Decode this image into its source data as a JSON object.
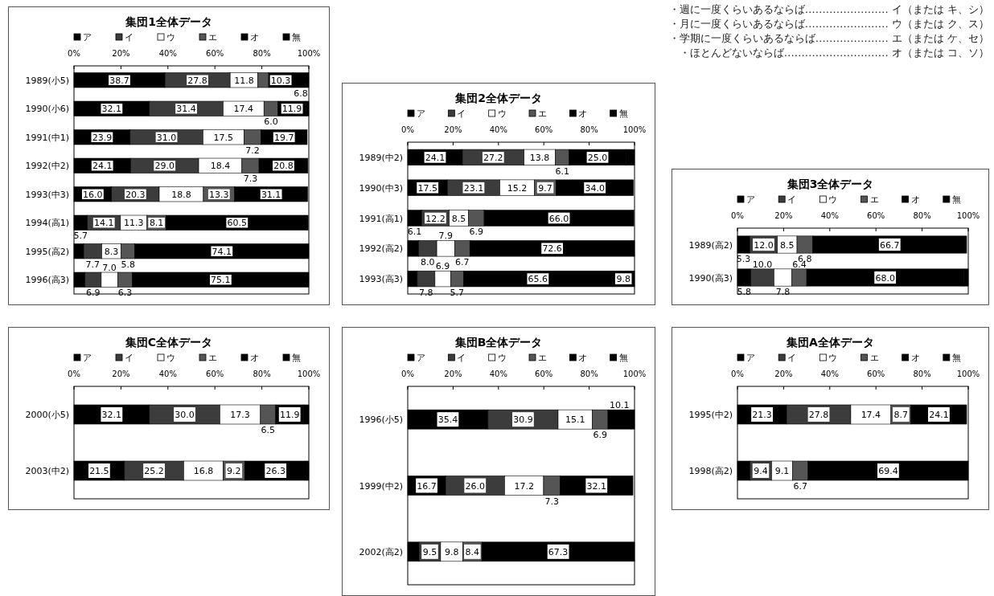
{
  "chart_data": [
    {
      "type": "other",
      "annotations": [
        "・週に一度くらいあるならば…………………… イ（または キ、シ）",
        "・月に一度くらいあるならば…………………… ウ（または ク、ス）",
        "・学期に一度くらいあるならば………………… エ（または ケ、セ）",
        "・ほとんどないならば………………………… オ（または コ、ソ）"
      ]
    },
    {
      "type": "bar",
      "orientation": "horizontal",
      "stacked": true,
      "title": "集団1全体データ",
      "legend": "top",
      "xlim": [
        0,
        100
      ],
      "xticks": [
        {
          "value": 0,
          "label": "0%"
        },
        {
          "value": 20,
          "label": "20%"
        },
        {
          "value": 40,
          "label": "40%"
        },
        {
          "value": 60,
          "label": "60%"
        },
        {
          "value": 80,
          "label": "80%"
        },
        {
          "value": 100,
          "label": "100%"
        }
      ],
      "categories": [
        "1989(小5)",
        "1990(小6)",
        "1991(中1)",
        "1992(中2)",
        "1993(中3)",
        "1994(高1)",
        "1995(高2)",
        "1996(高3)"
      ],
      "series": [
        {
          "name": "ア",
          "color": "#000000",
          "values": [
            38.7,
            32.1,
            23.9,
            24.1,
            16.0,
            5.7,
            4.1,
            4.7
          ],
          "value_labels": [
            "38.7",
            "32.1",
            "23.9",
            "24.1",
            "16.0",
            "5.7",
            null,
            null
          ]
        },
        {
          "name": "イ",
          "color": "#3c3c3c",
          "values": [
            27.8,
            31.4,
            31.0,
            29.0,
            20.3,
            14.1,
            7.7,
            6.9
          ],
          "value_labels": [
            "27.8",
            "31.4",
            "31.0",
            "29.0",
            "20.3",
            "14.1",
            "7.7",
            "6.9"
          ]
        },
        {
          "name": "ウ",
          "color": "#ffffff",
          "values": [
            11.8,
            17.4,
            17.5,
            18.4,
            18.8,
            11.3,
            8.3,
            7.0
          ],
          "value_labels": [
            "11.8",
            "17.4",
            "17.5",
            "18.4",
            "18.8",
            "11.3",
            "8.3",
            "7.0"
          ]
        },
        {
          "name": "エ",
          "color": "#555555",
          "values": [
            4.6,
            6.0,
            7.2,
            7.3,
            13.3,
            8.1,
            5.8,
            6.3
          ],
          "value_labels": [
            null,
            "6.0",
            "7.2",
            "7.3",
            "13.3",
            "8.1",
            "5.8",
            "6.3"
          ]
        },
        {
          "name": "オ",
          "color": "#000000",
          "values": [
            10.3,
            11.9,
            19.7,
            20.8,
            31.1,
            60.5,
            74.1,
            75.1
          ],
          "value_labels": [
            "10.3",
            "11.9",
            "19.7",
            "20.8",
            "31.1",
            "60.5",
            "74.1",
            "75.1"
          ]
        },
        {
          "name": "無",
          "color": "#000000",
          "values": [
            6.8,
            1.2,
            null,
            null,
            null,
            null,
            null,
            null
          ],
          "value_labels": [
            "6.8",
            null,
            null,
            null,
            null,
            null,
            null,
            null
          ]
        }
      ]
    },
    {
      "type": "bar",
      "orientation": "horizontal",
      "stacked": true,
      "title": "集団2全体データ",
      "legend": "top",
      "xlim": [
        0,
        100
      ],
      "xticks": [
        {
          "value": 0,
          "label": "0%"
        },
        {
          "value": 20,
          "label": "20%"
        },
        {
          "value": 40,
          "label": "40%"
        },
        {
          "value": 60,
          "label": "60%"
        },
        {
          "value": 80,
          "label": "80%"
        },
        {
          "value": 100,
          "label": "100%"
        }
      ],
      "categories": [
        "1989(中2)",
        "1990(中3)",
        "1991(高1)",
        "1992(高2)",
        "1993(高3)"
      ],
      "series": [
        {
          "name": "ア",
          "color": "#000000",
          "values": [
            24.1,
            17.5,
            6.1,
            4.8,
            4.2
          ],
          "value_labels": [
            "24.1",
            "17.5",
            "6.1",
            null,
            null
          ]
        },
        {
          "name": "イ",
          "color": "#3c3c3c",
          "values": [
            27.2,
            23.1,
            12.2,
            8.0,
            7.8
          ],
          "value_labels": [
            "27.2",
            "23.1",
            "12.2",
            "8.0",
            "7.8"
          ]
        },
        {
          "name": "ウ",
          "color": "#ffffff",
          "values": [
            13.8,
            15.2,
            8.5,
            7.9,
            6.9
          ],
          "value_labels": [
            "13.8",
            "15.2",
            "8.5",
            "7.9",
            "6.9"
          ]
        },
        {
          "name": "エ",
          "color": "#555555",
          "values": [
            6.1,
            9.7,
            6.9,
            6.7,
            5.7
          ],
          "value_labels": [
            "6.1",
            "9.7",
            "6.9",
            "6.7",
            "5.7"
          ]
        },
        {
          "name": "オ",
          "color": "#000000",
          "values": [
            25.0,
            34.0,
            66.0,
            72.6,
            65.6
          ],
          "value_labels": [
            "25.0",
            "34.0",
            "66.0",
            "72.6",
            "65.6"
          ]
        },
        {
          "name": "無",
          "color": "#000000",
          "values": [
            3.8,
            null,
            null,
            null,
            9.8
          ],
          "value_labels": [
            null,
            null,
            null,
            null,
            "9.8"
          ]
        }
      ]
    },
    {
      "type": "bar",
      "orientation": "horizontal",
      "stacked": true,
      "title": "集団3全体データ",
      "legend": "top",
      "xlim": [
        0,
        100
      ],
      "xticks": [
        {
          "value": 0,
          "label": "0%"
        },
        {
          "value": 20,
          "label": "20%"
        },
        {
          "value": 40,
          "label": "40%"
        },
        {
          "value": 60,
          "label": "60%"
        },
        {
          "value": 80,
          "label": "80%"
        },
        {
          "value": 100,
          "label": "100%"
        }
      ],
      "categories": [
        "1989(高2)",
        "1990(高3)"
      ],
      "series": [
        {
          "name": "ア",
          "color": "#000000",
          "values": [
            5.3,
            5.8
          ],
          "value_labels": [
            "5.3",
            "5.8"
          ]
        },
        {
          "name": "イ",
          "color": "#3c3c3c",
          "values": [
            12.0,
            10.0
          ],
          "value_labels": [
            "12.0",
            "10.0"
          ]
        },
        {
          "name": "ウ",
          "color": "#ffffff",
          "values": [
            8.5,
            7.8
          ],
          "value_labels": [
            "8.5",
            "7.8"
          ]
        },
        {
          "name": "エ",
          "color": "#555555",
          "values": [
            6.8,
            6.4
          ],
          "value_labels": [
            "6.8",
            "6.4"
          ]
        },
        {
          "name": "オ",
          "color": "#000000",
          "values": [
            66.7,
            68.0
          ],
          "value_labels": [
            "66.7",
            "68.0"
          ]
        },
        {
          "name": "無",
          "color": "#000000",
          "values": [
            null,
            2.0
          ],
          "value_labels": [
            null,
            null
          ]
        }
      ]
    },
    {
      "type": "bar",
      "orientation": "horizontal",
      "stacked": true,
      "title": "集団C全体データ",
      "legend": "top",
      "xlim": [
        0,
        100
      ],
      "xticks": [
        {
          "value": 0,
          "label": "0%"
        },
        {
          "value": 20,
          "label": "20%"
        },
        {
          "value": 40,
          "label": "40%"
        },
        {
          "value": 60,
          "label": "60%"
        },
        {
          "value": 80,
          "label": "80%"
        },
        {
          "value": 100,
          "label": "100%"
        }
      ],
      "categories": [
        "2000(小5)",
        "2003(中2)"
      ],
      "series": [
        {
          "name": "ア",
          "color": "#000000",
          "values": [
            32.1,
            21.5
          ],
          "value_labels": [
            "32.1",
            "21.5"
          ]
        },
        {
          "name": "イ",
          "color": "#3c3c3c",
          "values": [
            30.0,
            25.2
          ],
          "value_labels": [
            "30.0",
            "25.2"
          ]
        },
        {
          "name": "ウ",
          "color": "#ffffff",
          "values": [
            17.3,
            16.8
          ],
          "value_labels": [
            "17.3",
            "16.8"
          ]
        },
        {
          "name": "エ",
          "color": "#555555",
          "values": [
            6.5,
            9.2
          ],
          "value_labels": [
            "6.5",
            "9.2"
          ]
        },
        {
          "name": "オ",
          "color": "#000000",
          "values": [
            11.9,
            26.3
          ],
          "value_labels": [
            "11.9",
            "26.3"
          ]
        },
        {
          "name": "無",
          "color": "#000000",
          "values": [
            2.2,
            1.0
          ],
          "value_labels": [
            null,
            null
          ]
        }
      ]
    },
    {
      "type": "bar",
      "orientation": "horizontal",
      "stacked": true,
      "title": "集団B全体データ",
      "legend": "top",
      "xlim": [
        0,
        100
      ],
      "xticks": [
        {
          "value": 0,
          "label": "0%"
        },
        {
          "value": 20,
          "label": "20%"
        },
        {
          "value": 40,
          "label": "40%"
        },
        {
          "value": 60,
          "label": "60%"
        },
        {
          "value": 80,
          "label": "80%"
        },
        {
          "value": 100,
          "label": "100%"
        }
      ],
      "categories": [
        "1996(小5)",
        "1999(中2)",
        "2002(高2)"
      ],
      "series": [
        {
          "name": "ア",
          "color": "#000000",
          "values": [
            35.4,
            16.7,
            5.0
          ],
          "value_labels": [
            "35.4",
            "16.7",
            null
          ]
        },
        {
          "name": "イ",
          "color": "#3c3c3c",
          "values": [
            30.9,
            26.0,
            9.5
          ],
          "value_labels": [
            "30.9",
            "26.0",
            "9.5"
          ]
        },
        {
          "name": "ウ",
          "color": "#ffffff",
          "values": [
            15.1,
            17.2,
            9.8
          ],
          "value_labels": [
            "15.1",
            "17.2",
            "9.8"
          ]
        },
        {
          "name": "エ",
          "color": "#555555",
          "values": [
            6.9,
            7.3,
            8.4
          ],
          "value_labels": [
            "6.9",
            "7.3",
            "8.4"
          ]
        },
        {
          "name": "オ",
          "color": "#000000",
          "values": [
            10.1,
            32.1,
            67.3
          ],
          "value_labels": [
            "10.1",
            "32.1",
            "67.3"
          ]
        },
        {
          "name": "無",
          "color": "#000000",
          "values": [
            1.6,
            null,
            null
          ],
          "value_labels": [
            null,
            null,
            null
          ]
        }
      ]
    },
    {
      "type": "bar",
      "orientation": "horizontal",
      "stacked": true,
      "title": "集団A全体データ",
      "legend": "top",
      "xlim": [
        0,
        100
      ],
      "xticks": [
        {
          "value": 0,
          "label": "0%"
        },
        {
          "value": 20,
          "label": "20%"
        },
        {
          "value": 40,
          "label": "40%"
        },
        {
          "value": 60,
          "label": "60%"
        },
        {
          "value": 80,
          "label": "80%"
        },
        {
          "value": 100,
          "label": "100%"
        }
      ],
      "categories": [
        "1995(中2)",
        "1998(高2)"
      ],
      "series": [
        {
          "name": "ア",
          "color": "#000000",
          "values": [
            21.3,
            5.4
          ],
          "value_labels": [
            "21.3",
            null
          ]
        },
        {
          "name": "イ",
          "color": "#3c3c3c",
          "values": [
            27.8,
            9.4
          ],
          "value_labels": [
            "27.8",
            "9.4"
          ]
        },
        {
          "name": "ウ",
          "color": "#ffffff",
          "values": [
            17.4,
            9.1
          ],
          "value_labels": [
            "17.4",
            "9.1"
          ]
        },
        {
          "name": "エ",
          "color": "#555555",
          "values": [
            8.7,
            6.7
          ],
          "value_labels": [
            "8.7",
            "6.7"
          ]
        },
        {
          "name": "オ",
          "color": "#000000",
          "values": [
            24.1,
            69.4
          ],
          "value_labels": [
            "24.1",
            "69.4"
          ]
        },
        {
          "name": "無",
          "color": "#000000",
          "values": [
            null,
            null
          ],
          "value_labels": [
            null,
            null
          ]
        }
      ]
    }
  ]
}
